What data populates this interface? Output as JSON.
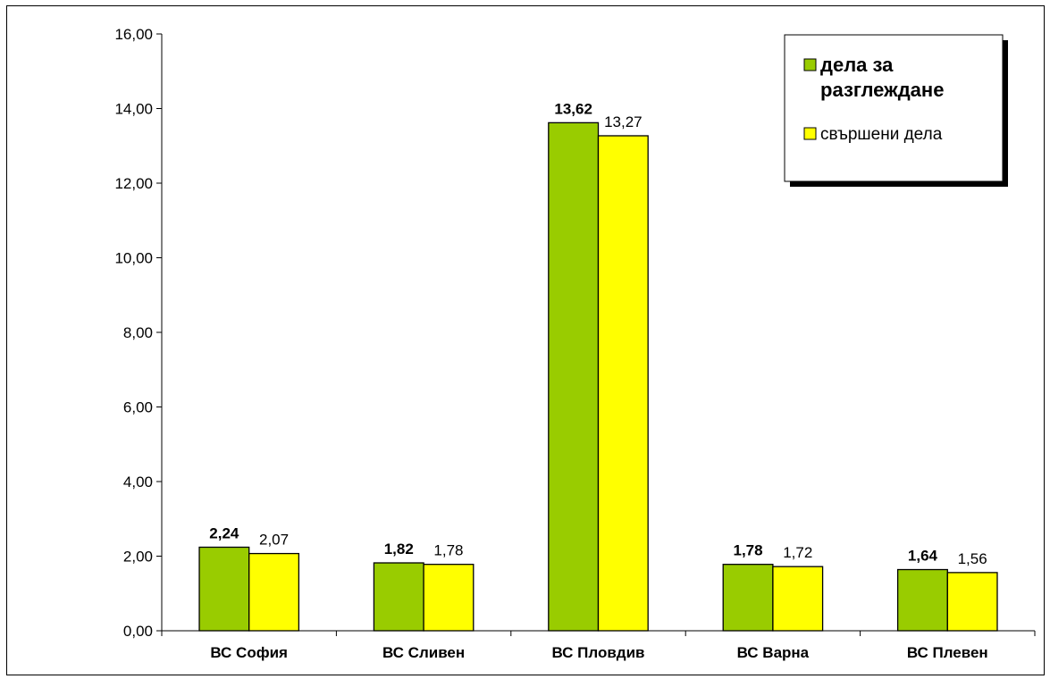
{
  "chart_data": {
    "type": "bar",
    "categories": [
      "ВС София",
      "ВС Сливен",
      "ВС Пловдив",
      "ВС Варна",
      "ВС Плевен"
    ],
    "series": [
      {
        "name": "дела за разглеждане",
        "values": [
          2.24,
          1.82,
          13.62,
          1.78,
          1.64
        ],
        "labels": [
          "2,24",
          "1,82",
          "13,62",
          "1,78",
          "1,64"
        ],
        "color": "#99cc00",
        "label_bold": true
      },
      {
        "name": "свършени дела",
        "values": [
          2.07,
          1.78,
          13.27,
          1.72,
          1.56
        ],
        "labels": [
          "2,07",
          "1,78",
          "13,27",
          "1,72",
          "1,56"
        ],
        "color": "#ffff00",
        "label_bold": false
      }
    ],
    "ylim": [
      0,
      16
    ],
    "yticks": [
      "0,00",
      "2,00",
      "4,00",
      "6,00",
      "8,00",
      "10,00",
      "12,00",
      "14,00",
      "16,00"
    ],
    "title": "",
    "xlabel": "",
    "ylabel": "",
    "grid": false,
    "legend_position": "top-right"
  }
}
